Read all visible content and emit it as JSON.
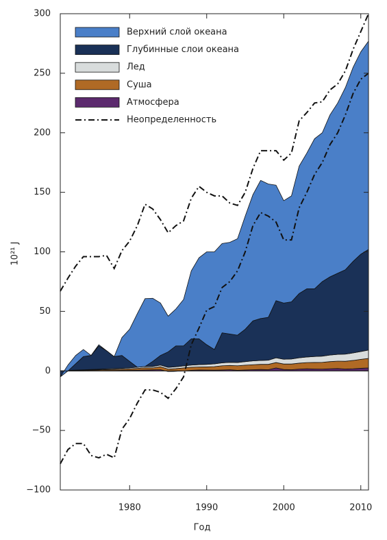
{
  "chart_data": {
    "type": "stacked-area",
    "x_label": "Год",
    "y_label": "10²¹ J",
    "x": [
      1971,
      1972,
      1973,
      1974,
      1975,
      1976,
      1977,
      1978,
      1979,
      1980,
      1981,
      1982,
      1983,
      1984,
      1985,
      1986,
      1987,
      1988,
      1989,
      1990,
      1991,
      1992,
      1993,
      1994,
      1995,
      1996,
      1997,
      1998,
      1999,
      2000,
      2001,
      2002,
      2003,
      2004,
      2005,
      2006,
      2007,
      2008,
      2009,
      2010,
      2011
    ],
    "xlim": [
      1971,
      2011
    ],
    "xticks": [
      1980,
      1990,
      2000,
      2010
    ],
    "ylim": [
      -100,
      300
    ],
    "yticks": [
      {
        "value": -100,
        "label": "−100"
      },
      {
        "value": -50,
        "label": "−50"
      },
      0,
      50,
      100,
      150,
      200,
      250,
      300
    ],
    "series": [
      {
        "name": "Атмосфера",
        "color": "#5c2a6e",
        "values": [
          0,
          0,
          0,
          0,
          0.1,
          0.2,
          0.3,
          0.3,
          0.4,
          0.5,
          0.6,
          0.8,
          0.9,
          1.0,
          -0.5,
          -0.3,
          0,
          0.5,
          0.8,
          0.7,
          0.6,
          0.8,
          1.0,
          0.5,
          0.8,
          1.0,
          1.2,
          1.0,
          2.5,
          1.2,
          1.0,
          1.5,
          1.8,
          1.6,
          1.5,
          1.8,
          2.0,
          1.6,
          1.8,
          2.2,
          2.5
        ]
      },
      {
        "name": "Суша",
        "color": "#b06a25",
        "values": [
          0,
          0.2,
          0.4,
          0.5,
          0.6,
          0.7,
          0.8,
          0.9,
          1.0,
          1.2,
          1.5,
          1.8,
          1.6,
          2.5,
          2.0,
          2.2,
          2.5,
          2.6,
          2.5,
          2.7,
          3.0,
          3.5,
          3.6,
          3.8,
          4.0,
          4.2,
          4.3,
          4.5,
          4.5,
          4.6,
          4.8,
          5.0,
          5.2,
          5.5,
          5.7,
          6.0,
          6.2,
          6.5,
          7.0,
          7.5,
          8.0
        ]
      },
      {
        "name": "Лед",
        "color": "#d8dcdc",
        "values": [
          0,
          0.2,
          0.3,
          0.4,
          0.5,
          0.5,
          0.6,
          0.7,
          0.8,
          0.9,
          1.0,
          1.1,
          1.2,
          1.4,
          1.5,
          1.6,
          1.7,
          1.8,
          2.0,
          2.1,
          2.3,
          2.5,
          2.6,
          2.8,
          3.0,
          3.2,
          3.3,
          3.5,
          4.0,
          4.0,
          4.2,
          4.5,
          4.7,
          5.0,
          5.2,
          5.5,
          5.7,
          6.0,
          6.3,
          6.6,
          7.0
        ]
      },
      {
        "name": "Глубинные слои океана",
        "color": "#1a3157",
        "values": [
          -5,
          -0.4,
          5.3,
          11.1,
          11.8,
          19.6,
          15.3,
          10.1,
          10.8,
          5.4,
          0,
          0,
          4.3,
          8.1,
          13,
          17.5,
          16.8,
          22.1,
          21.7,
          16.5,
          12.1,
          25.2,
          23.8,
          22.9,
          27.2,
          33.6,
          35.2,
          36,
          48,
          47.2,
          48,
          54,
          57.3,
          56.9,
          62.6,
          65.7,
          68.1,
          70.9,
          76.9,
          81.7,
          84.5
        ]
      },
      {
        "name": "Верхний слой океана",
        "color": "#4a7fc8",
        "values": [
          0,
          5,
          7,
          6,
          0,
          1,
          0,
          0,
          15,
          27,
          45,
          57,
          53,
          44,
          30,
          31,
          39,
          57,
          68,
          78,
          82,
          75,
          77,
          81,
          95,
          106,
          116,
          112,
          97,
          86,
          89,
          107,
          114,
          126,
          125,
          136,
          143,
          153,
          163,
          170,
          175
        ]
      }
    ],
    "uncertainty": {
      "name": "Неопределенность",
      "color": "#111111",
      "upper": [
        67,
        78,
        88,
        96,
        96,
        96,
        97,
        86,
        101,
        109,
        122,
        140,
        136,
        127,
        116,
        122,
        126,
        145,
        155,
        150,
        147,
        147,
        141,
        139,
        150,
        170,
        185,
        185,
        185,
        177,
        183,
        210,
        217,
        225,
        226,
        236,
        241,
        252,
        270,
        285,
        300
      ],
      "lower": [
        -78,
        -66,
        -61,
        -61,
        -71,
        -73,
        -70,
        -73,
        -49,
        -40,
        -27,
        -16,
        -16,
        -18,
        -23,
        -15,
        -5,
        22,
        36,
        51,
        54,
        70,
        75,
        84,
        100,
        122,
        133,
        130,
        125,
        110,
        110,
        137,
        150,
        165,
        175,
        190,
        200,
        215,
        233,
        245,
        250
      ]
    }
  }
}
